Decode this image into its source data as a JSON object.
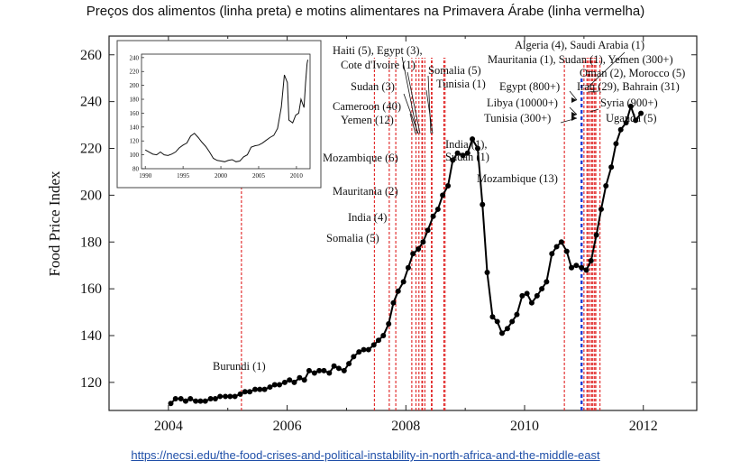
{
  "title": "Preços dos alimentos (linha preta) e motins alimentares na Primavera Árabe (linha vermelha)",
  "source_link": "https://necsi.edu/the-food-crises-and-political-instability-in-north-africa-and-the-middle-east",
  "chart_data": {
    "type": "line",
    "ylabel": "Food Price Index",
    "xlabel": "",
    "xlim": [
      2003.0,
      2012.9
    ],
    "ylim": [
      108,
      268
    ],
    "x_ticks": [
      2004,
      2006,
      2008,
      2010,
      2012
    ],
    "y_ticks": [
      120,
      140,
      160,
      180,
      200,
      220,
      240,
      260
    ],
    "line_color": "#000000",
    "riot_line_color": "#e02020",
    "highlight_line_color": "#1f3fd6",
    "series": [
      {
        "values": [
          [
            2004.04,
            111
          ],
          [
            2004.12,
            113
          ],
          [
            2004.21,
            113
          ],
          [
            2004.29,
            112
          ],
          [
            2004.37,
            113
          ],
          [
            2004.46,
            112
          ],
          [
            2004.54,
            112
          ],
          [
            2004.62,
            112
          ],
          [
            2004.71,
            113
          ],
          [
            2004.79,
            113
          ],
          [
            2004.87,
            114
          ],
          [
            2004.96,
            114
          ],
          [
            2005.04,
            114
          ],
          [
            2005.12,
            114
          ],
          [
            2005.21,
            115
          ],
          [
            2005.29,
            116
          ],
          [
            2005.37,
            116
          ],
          [
            2005.46,
            117
          ],
          [
            2005.54,
            117
          ],
          [
            2005.62,
            117
          ],
          [
            2005.71,
            118
          ],
          [
            2005.79,
            119
          ],
          [
            2005.87,
            119
          ],
          [
            2005.96,
            120
          ],
          [
            2006.04,
            121
          ],
          [
            2006.12,
            120
          ],
          [
            2006.21,
            122
          ],
          [
            2006.29,
            121
          ],
          [
            2006.37,
            125
          ],
          [
            2006.46,
            124
          ],
          [
            2006.54,
            125
          ],
          [
            2006.62,
            125
          ],
          [
            2006.71,
            124
          ],
          [
            2006.79,
            127
          ],
          [
            2006.87,
            126
          ],
          [
            2006.96,
            125
          ],
          [
            2007.04,
            128
          ],
          [
            2007.12,
            131
          ],
          [
            2007.21,
            133
          ],
          [
            2007.29,
            134
          ],
          [
            2007.37,
            134
          ],
          [
            2007.46,
            136
          ],
          [
            2007.54,
            138
          ],
          [
            2007.62,
            140
          ],
          [
            2007.71,
            145
          ],
          [
            2007.79,
            154
          ],
          [
            2007.87,
            159
          ],
          [
            2007.96,
            163
          ],
          [
            2008.04,
            169
          ],
          [
            2008.12,
            175
          ],
          [
            2008.21,
            177
          ],
          [
            2008.29,
            180
          ],
          [
            2008.37,
            185
          ],
          [
            2008.46,
            191
          ],
          [
            2008.54,
            194
          ],
          [
            2008.62,
            200
          ],
          [
            2008.71,
            204
          ],
          [
            2008.79,
            215
          ],
          [
            2008.87,
            218
          ],
          [
            2008.96,
            217
          ],
          [
            2009.04,
            218
          ],
          [
            2009.12,
            224
          ],
          [
            2009.21,
            220
          ],
          [
            2009.29,
            196
          ],
          [
            2009.37,
            167
          ],
          [
            2009.46,
            148
          ],
          [
            2009.54,
            146
          ],
          [
            2009.62,
            141
          ],
          [
            2009.71,
            143
          ],
          [
            2009.79,
            146
          ],
          [
            2009.87,
            149
          ],
          [
            2009.96,
            157
          ],
          [
            2010.04,
            158
          ],
          [
            2010.12,
            154
          ],
          [
            2010.21,
            157
          ],
          [
            2010.29,
            160
          ],
          [
            2010.37,
            163
          ],
          [
            2010.46,
            175
          ],
          [
            2010.54,
            178
          ],
          [
            2010.62,
            180
          ],
          [
            2010.71,
            176
          ],
          [
            2010.79,
            169
          ],
          [
            2010.87,
            170
          ],
          [
            2010.96,
            169
          ],
          [
            2011.04,
            168
          ],
          [
            2011.12,
            172
          ],
          [
            2011.21,
            183
          ],
          [
            2011.29,
            194
          ],
          [
            2011.37,
            204
          ],
          [
            2011.46,
            212
          ],
          [
            2011.54,
            222
          ],
          [
            2011.62,
            228
          ],
          [
            2011.71,
            231
          ],
          [
            2011.79,
            238
          ],
          [
            2011.87,
            232
          ],
          [
            2011.96,
            235
          ]
        ]
      }
    ],
    "inset": {
      "xlim": [
        1989.5,
        2011.8
      ],
      "ylim": [
        80,
        245
      ],
      "x_ticks": [
        1990,
        1995,
        2000,
        2005,
        2010
      ],
      "y_ticks": [
        80,
        100,
        120,
        140,
        160,
        180,
        200,
        220,
        240
      ],
      "values": [
        [
          1990.0,
          107
        ],
        [
          1990.5,
          104
        ],
        [
          1991.0,
          101
        ],
        [
          1991.5,
          100
        ],
        [
          1992.0,
          104
        ],
        [
          1992.5,
          100
        ],
        [
          1993.0,
          99
        ],
        [
          1993.5,
          101
        ],
        [
          1994.0,
          104
        ],
        [
          1994.5,
          110
        ],
        [
          1995.0,
          114
        ],
        [
          1995.5,
          117
        ],
        [
          1996.0,
          127
        ],
        [
          1996.5,
          131
        ],
        [
          1997.0,
          125
        ],
        [
          1997.5,
          118
        ],
        [
          1998.0,
          112
        ],
        [
          1998.5,
          104
        ],
        [
          1999.0,
          95
        ],
        [
          1999.5,
          92
        ],
        [
          2000.0,
          91
        ],
        [
          2000.5,
          90
        ],
        [
          2001.0,
          92
        ],
        [
          2001.5,
          93
        ],
        [
          2002.0,
          90
        ],
        [
          2002.5,
          91
        ],
        [
          2003.0,
          97
        ],
        [
          2003.5,
          100
        ],
        [
          2004.0,
          111
        ],
        [
          2004.5,
          113
        ],
        [
          2005.0,
          114
        ],
        [
          2005.5,
          117
        ],
        [
          2006.0,
          121
        ],
        [
          2006.5,
          125
        ],
        [
          2007.0,
          128
        ],
        [
          2007.5,
          138
        ],
        [
          2008.0,
          169
        ],
        [
          2008.4,
          215
        ],
        [
          2008.8,
          204
        ],
        [
          2009.0,
          150
        ],
        [
          2009.5,
          146
        ],
        [
          2009.9,
          157
        ],
        [
          2010.3,
          160
        ],
        [
          2010.6,
          180
        ],
        [
          2011.0,
          168
        ],
        [
          2011.2,
          203
        ],
        [
          2011.4,
          231
        ],
        [
          2011.5,
          237
        ]
      ]
    },
    "riot_events": [
      {
        "x": 2005.23,
        "label": "Burundi (1)"
      },
      {
        "x": 2007.47,
        "label": "Somalia (5)"
      },
      {
        "x": 2007.72,
        "label": "India (4)"
      },
      {
        "x": 2007.83,
        "label": "Mauritania (2)"
      },
      {
        "x": 2008.1,
        "label": "Mozambique (6)"
      },
      {
        "x": 2008.17,
        "label": "Cameroon (40)"
      },
      {
        "x": 2008.22,
        "label": "Yemen (12)"
      },
      {
        "x": 2008.27,
        "label": "Sudan (3)"
      },
      {
        "x": 2008.28,
        "label": "Haiti (5), Egypt (3),"
      },
      {
        "x": 2008.32,
        "label": "Cote d'Ivoire (1)"
      },
      {
        "x": 2008.43,
        "label": "Somalia (5)"
      },
      {
        "x": 2008.44,
        "label": "Tunisia (1)"
      },
      {
        "x": 2008.64,
        "label": "India (1),"
      },
      {
        "x": 2008.66,
        "label": "Sudan (1)"
      },
      {
        "x": 2010.67,
        "label": "Mozambique (13)"
      },
      {
        "x": 2011.0,
        "label": "Tunisia (300+)"
      },
      {
        "x": 2011.05,
        "label": "Libya (10000+)"
      },
      {
        "x": 2011.07,
        "label": "Egypt (800+)"
      },
      {
        "x": 2011.1,
        "label": "Iraq (29), Bahrain (31)"
      },
      {
        "x": 2011.13,
        "label": "Algeria (4), Saudi Arabia (1)"
      },
      {
        "x": 2011.15,
        "label": "Mauritania (1), Sudan (1), Yemen (300+)"
      },
      {
        "x": 2011.18,
        "label": "Oman (2), Morocco (5)"
      },
      {
        "x": 2011.2,
        "label": "Syria (900+)"
      },
      {
        "x": 2011.27,
        "label": "Uganda (5)"
      }
    ],
    "highlight_event": {
      "x": 2010.96
    }
  }
}
